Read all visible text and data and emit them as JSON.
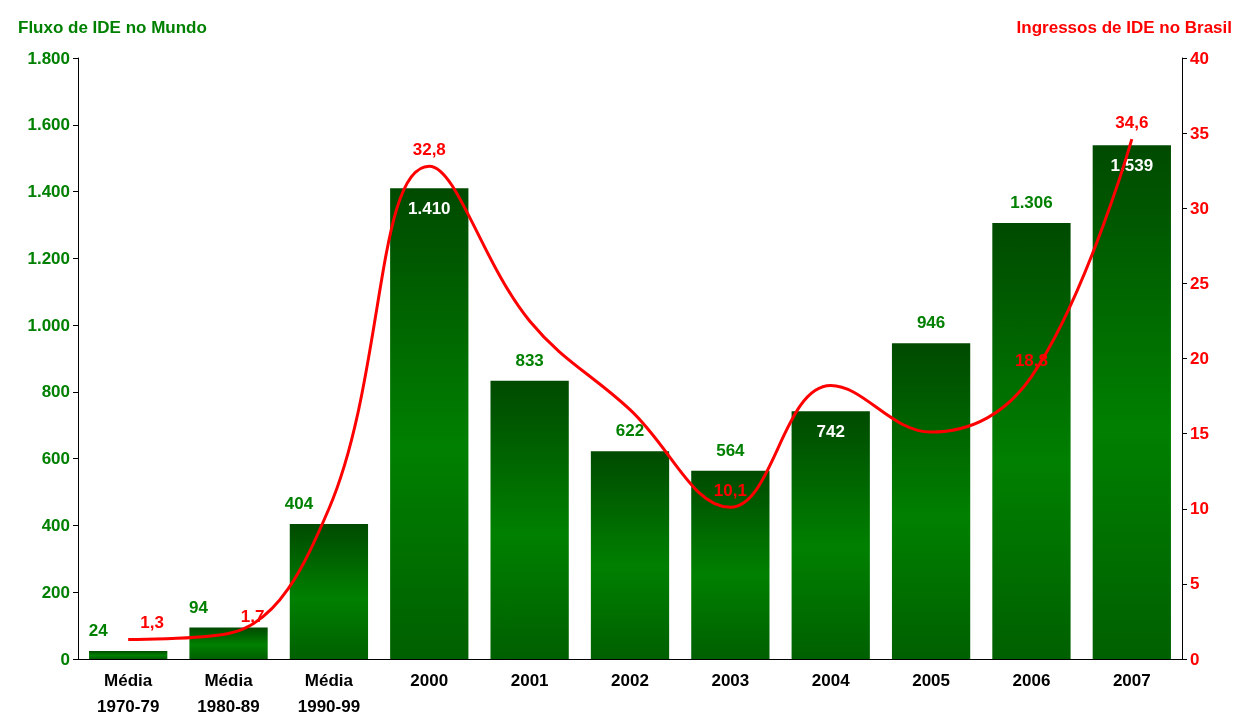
{
  "chart_data": {
    "type": "bar",
    "ylabel": "Fluxo de IDE no Mundo",
    "y2label": "Ingressos de IDE no Brasil",
    "categories": [
      "Média\n1970-79",
      "Média\n1980-89",
      "Média\n1990-99",
      "2000",
      "2001",
      "2002",
      "2003",
      "2004",
      "2005",
      "2006",
      "2007"
    ],
    "series": [
      {
        "color": "#008000",
        "values": [
          24,
          94,
          404,
          1410,
          833,
          622,
          564,
          742,
          946,
          1306,
          1539
        ],
        "value_labels": [
          "24",
          "94",
          "404",
          "1.410",
          "833",
          "622",
          "564",
          "742",
          "946",
          "1.306",
          "1.539"
        ]
      },
      {
        "type": "line",
        "axis": "y2",
        "color": "#ff0000",
        "values": [
          1.3,
          1.7,
          10,
          32.8,
          22.5,
          16.6,
          10.1,
          18.2,
          15.1,
          18.8,
          34.6
        ],
        "value_labels": [
          "1,3",
          "1,7",
          null,
          "32,8",
          null,
          null,
          "10,1",
          null,
          null,
          "18,8",
          "34,6"
        ]
      }
    ],
    "ylim": [
      0,
      1800
    ],
    "yticks": [
      0,
      {
        "value": 200,
        "label": "200"
      },
      {
        "value": 400,
        "label": "400"
      },
      {
        "value": 600,
        "label": "600"
      },
      {
        "value": 800,
        "label": "800"
      },
      {
        "value": 1000,
        "label": "1.000"
      },
      {
        "value": 1200,
        "label": "1.200"
      },
      {
        "value": 1400,
        "label": "1.400"
      },
      {
        "value": 1600,
        "label": "1.600"
      },
      {
        "value": 1800,
        "label": "1.800"
      }
    ],
    "y2lim": [
      0,
      40
    ],
    "y2ticks": [
      0,
      5,
      10,
      15,
      20,
      25,
      30,
      35,
      40
    ],
    "grid": false,
    "marker": "none",
    "line_style": "solid"
  }
}
